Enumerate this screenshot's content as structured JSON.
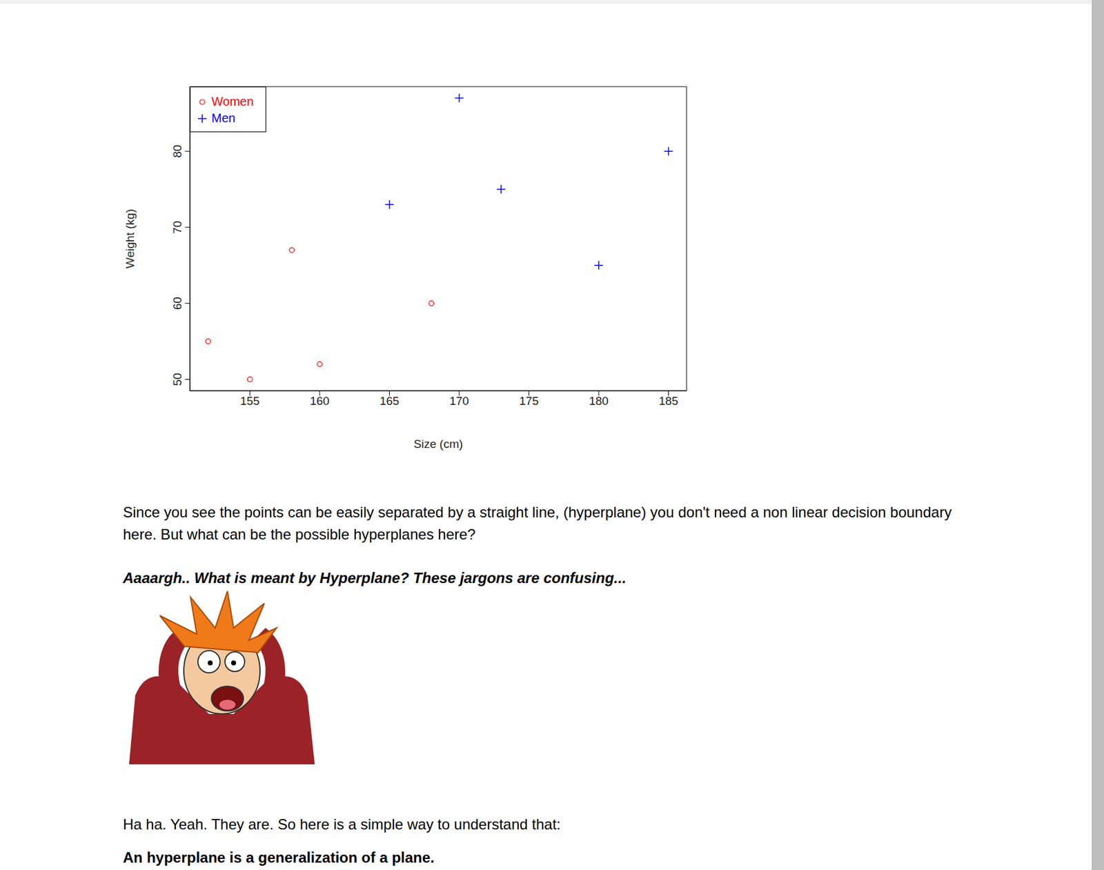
{
  "chart_data": {
    "type": "scatter",
    "x_label": "Size (cm)",
    "y_label": "Weight (kg)",
    "xlim": [
      150.7,
      186.3
    ],
    "ylim": [
      48.5,
      88.5
    ],
    "xticks": [
      155,
      160,
      165,
      170,
      175,
      180,
      185
    ],
    "yticks": [
      50,
      60,
      70,
      80
    ],
    "grid": false,
    "legend": "top-left",
    "series": [
      {
        "name": "Women",
        "color": "#ff0000",
        "marker": "circle",
        "x": [
          152,
          155,
          158,
          160,
          168
        ],
        "values": [
          55,
          50,
          67,
          52,
          60
        ]
      },
      {
        "name": "Men",
        "color": "#0000ff",
        "marker": "plus",
        "x": [
          165,
          170,
          173,
          180,
          185
        ],
        "values": [
          73,
          87,
          75,
          65,
          80
        ]
      }
    ]
  },
  "document": {
    "intro": "Since you see the points can be easily separated by a straight line, (hyperplane)  you don't need a non linear decision boundary here. But what can be the possible hyperplanes here?",
    "exclamation": "Aaaargh.. What is meant by Hyperplane? These jargons are confusing...",
    "reply": "Ha ha. Yeah. They are. So here is a simple way to understand that:",
    "definition": "An hyperplane is a generalization of a plane."
  }
}
